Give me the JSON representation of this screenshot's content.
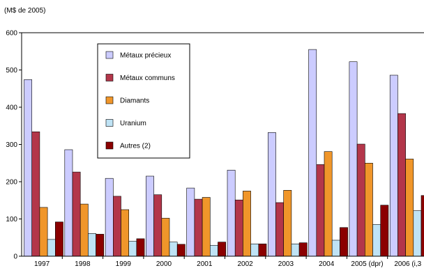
{
  "chart_data": {
    "type": "bar",
    "unit_label": "(M$ de 2005)",
    "categories": [
      "1997",
      "1998",
      "1999",
      "2000",
      "2001",
      "2002",
      "2003",
      "2004",
      "2005 (dpr)",
      "2006 (i,3"
    ],
    "yticks": [
      0,
      100,
      200,
      300,
      400,
      500,
      600
    ],
    "ylim": [
      0,
      600
    ],
    "grid": false,
    "legend_position": "top-left",
    "series": [
      {
        "name": "Métaux précieux",
        "color": "#ccccff",
        "values": [
          474,
          286,
          209,
          215,
          183,
          231,
          332,
          555,
          522,
          486
        ]
      },
      {
        "name": "Métaux communs",
        "color": "#b3364a",
        "values": [
          334,
          226,
          161,
          165,
          153,
          151,
          144,
          246,
          301,
          383
        ]
      },
      {
        "name": "Diamants",
        "color": "#f0962a",
        "values": [
          131,
          140,
          125,
          102,
          158,
          175,
          177,
          281,
          250,
          261
        ]
      },
      {
        "name": "Uranium",
        "color": "#bfe3f5",
        "values": [
          45,
          61,
          40,
          38,
          29,
          33,
          33,
          43,
          85,
          122
        ]
      },
      {
        "name": "Autres (2)",
        "color": "#8b0000",
        "values": [
          92,
          59,
          47,
          32,
          38,
          33,
          36,
          77,
          137,
          163
        ]
      }
    ]
  }
}
